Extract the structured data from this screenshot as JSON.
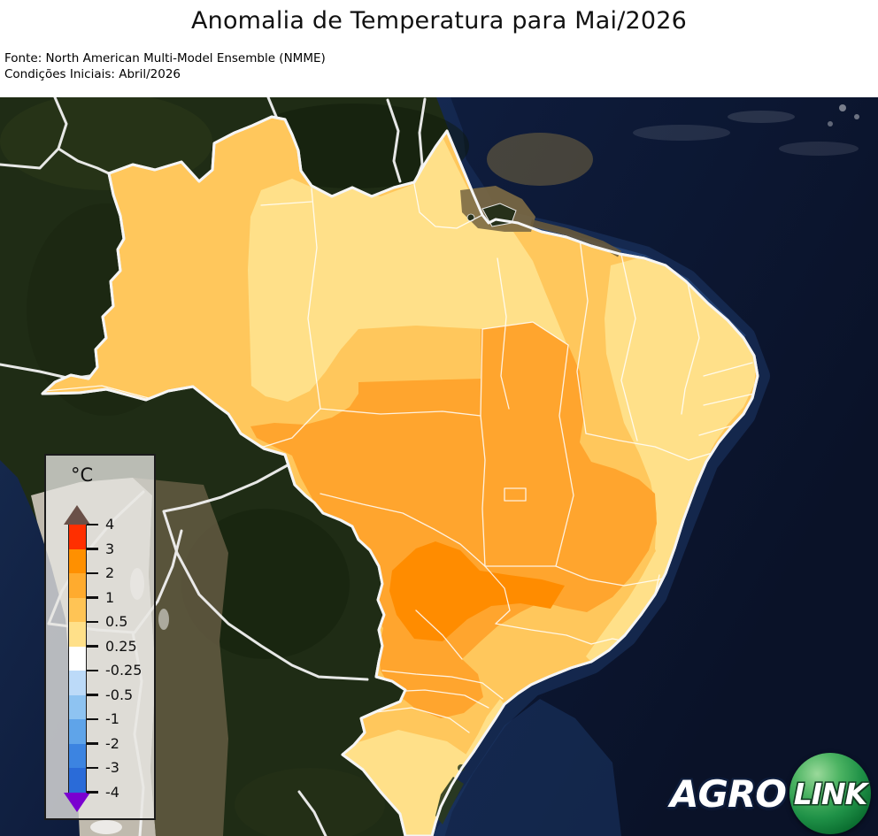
{
  "header": {
    "title": "Anomalia de Temperatura para Mai/2026",
    "source_line1": "Fonte: North American Multi-Model Ensemble (NMME)",
    "source_line2": "Condições Iniciais: Abril/2026"
  },
  "chart_data": {
    "type": "choropleth_map",
    "title": "Anomalia de Temperatura para Mai/2026",
    "source": "North American Multi-Model Ensemble (NMME)",
    "initial_conditions": "Abril/2026",
    "forecast_month": "Mai/2026",
    "region": "Brasil",
    "variable": "Anomalia de Temperatura",
    "unit": "°C",
    "colorbar": {
      "label": "°C",
      "tick_labels": [
        "4",
        "3",
        "2",
        "1",
        "0.5",
        "0.25",
        "-0.25",
        "-0.5",
        "-1",
        "-2",
        "-3",
        "-4"
      ],
      "segment_colors_top_to_bottom": [
        "#ff2f00",
        "#ff9000",
        "#ffab2e",
        "#ffc455",
        "#ffe089",
        "#ffffff",
        "#bcdaf8",
        "#8ec3f1",
        "#5fa4e9",
        "#3c84e1",
        "#2a6bd8"
      ],
      "over_color": "#6a5048",
      "under_color": "#7a00d0",
      "orientation": "vertical",
      "position": "left-middle"
    },
    "map_reading": {
      "overall": "Anomalias positivas (0.25 a 3 °C) em todo o Brasil; sem anomalias negativas",
      "regions": [
        {
          "area": "Norte do Pará / Amapá / centro-norte da Amazônia",
          "anomaly_c": "0.25 a 0.5"
        },
        {
          "area": "Litoral do Nordeste (CE/RN/PB/PE) e litoral da Bahia",
          "anomaly_c": "0.25 a 0.5"
        },
        {
          "area": "Amazônia ocidental (AM/AC/RO) e Roraima",
          "anomaly_c": "0.5 a 1"
        },
        {
          "area": "Centro-Oeste, Tocantins, oeste da Bahia, MG, SP, PR e oeste de SC",
          "anomaly_c": "1 a 2"
        },
        {
          "area": "Fronteira MS/SP/sul de GO (núcleo mais quente)",
          "anomaly_c": "2 a 3"
        },
        {
          "area": "Centro e litoral do Rio Grande do Sul",
          "anomaly_c": "0.25 a 0.5"
        }
      ]
    }
  },
  "logo": {
    "part1": "AGRO",
    "part2": "LINK"
  },
  "colors": {
    "ocean_deep": "#0a1228",
    "ocean_near_coast": "#1a3056",
    "continental_shelf": "#27528f",
    "land_dark_green": "#1f2c15",
    "andes_gray": "#c9c2b6",
    "anomaly_025_05": "#ffe089",
    "anomaly_05_1": "#ffc75c",
    "anomaly_1_2": "#ffa52e",
    "anomaly_2_3": "#ff8c00",
    "state_border": "#ffffff"
  }
}
